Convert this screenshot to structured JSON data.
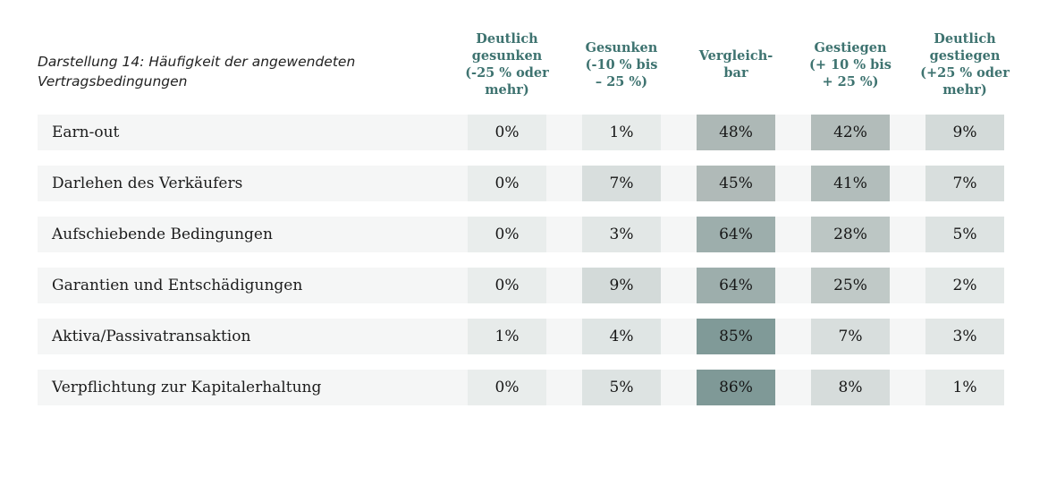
{
  "figure": {
    "title": "Darstellung 14: Häufigkeit der angewendeten\nVertragsbedingungen"
  },
  "colors": {
    "header_text": "#3e7370",
    "row_background": "#f5f6f6",
    "label_text": "#1c1c1c",
    "value_text": "#161616",
    "page_background": "#ffffff"
  },
  "chart_data": {
    "type": "heatmap",
    "title": "Darstellung 14: Häufigkeit der angewendeten Vertragsbedingungen",
    "unit": "%",
    "legend_position": "none",
    "columns": [
      "Deutlich\ngesunken\n(-25 % oder\nmehr)",
      "Gesunken\n(-10 % bis\n– 25 %)",
      "Vergleich-\nbar",
      "Gestiegen\n(+ 10 % bis\n+ 25 %)",
      "Deutlich\ngestiegen\n(+25 % oder\nmehr)"
    ],
    "rows": [
      {
        "label": "Earn-out",
        "values": [
          0,
          1,
          48,
          42,
          9
        ]
      },
      {
        "label": "Darlehen des Verkäufers",
        "values": [
          0,
          7,
          45,
          41,
          7
        ]
      },
      {
        "label": "Aufschiebende Bedingungen",
        "values": [
          0,
          3,
          64,
          28,
          5
        ]
      },
      {
        "label": "Garantien und Entschädigungen",
        "values": [
          0,
          9,
          64,
          25,
          2
        ]
      },
      {
        "label": "Aktiva/Passivatransaktion",
        "values": [
          1,
          4,
          85,
          7,
          3
        ]
      },
      {
        "label": "Verpflichtung zur Kapitalerhaltung",
        "values": [
          0,
          5,
          86,
          8,
          1
        ]
      }
    ],
    "value_range": [
      0,
      86
    ],
    "heatmap_scale_stops": [
      [
        0,
        "#e9edec"
      ],
      [
        10,
        "#d1d8d7"
      ],
      [
        30,
        "#bac4c2"
      ],
      [
        50,
        "#acb7b5"
      ],
      [
        65,
        "#9cadab"
      ],
      [
        86,
        "#7f9997"
      ]
    ]
  }
}
